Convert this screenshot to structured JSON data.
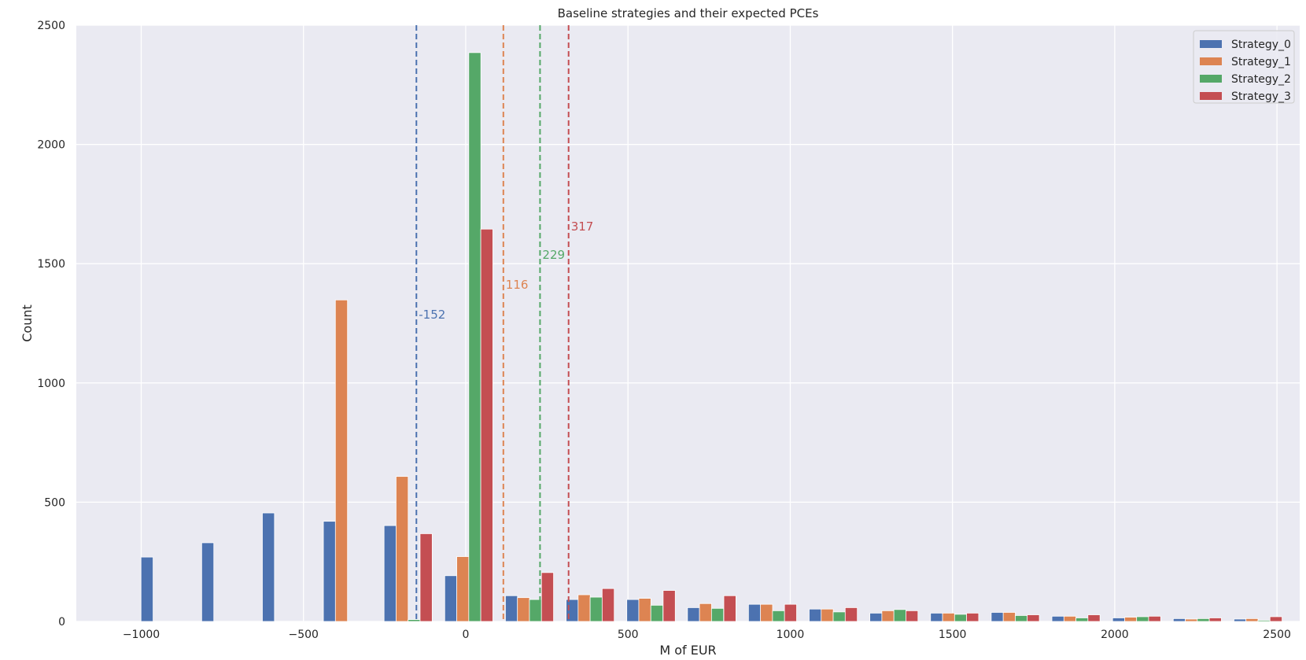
{
  "chart_data": {
    "type": "bar",
    "title": "Baseline strategies and their expected PCEs",
    "xlabel": "M of EUR",
    "ylabel": "Count",
    "xlim": [
      -1200,
      2570
    ],
    "ylim": [
      0,
      2500
    ],
    "xticks": [
      -1000,
      -500,
      0,
      500,
      1000,
      1500,
      2000,
      2500
    ],
    "xtick_labels": [
      "−1000",
      "−500",
      "0",
      "500",
      "1000",
      "1500",
      "2000",
      "2500"
    ],
    "yticks": [
      0,
      500,
      1000,
      1500,
      2000,
      2500
    ],
    "ytick_labels": [
      "0",
      "500",
      "1000",
      "1500",
      "2000",
      "2500"
    ],
    "grid": true,
    "legend_position": "top-right",
    "bin_width": 37.3,
    "series": [
      {
        "name": "Strategy_0",
        "color": "#4c72b0",
        "x": [
          -982,
          -795,
          -608,
          -420,
          -233,
          -46,
          141,
          328,
          515,
          702,
          890,
          1077,
          1264,
          1451,
          1638,
          1825,
          2012,
          2199,
          2386
        ],
        "values": [
          270,
          330,
          455,
          420,
          402,
          192,
          108,
          92,
          92,
          58,
          72,
          52,
          35,
          35,
          38,
          22,
          15,
          12,
          10
        ]
      },
      {
        "name": "Strategy_1",
        "color": "#dd8452",
        "x": [
          -945,
          -758,
          -571,
          -383,
          -196,
          -9,
          178,
          365,
          552,
          739,
          927,
          1114,
          1301,
          1488,
          1675,
          1862,
          2049,
          2236,
          2423
        ],
        "values": [
          0,
          0,
          0,
          1348,
          608,
          272,
          100,
          112,
          97,
          75,
          72,
          52,
          45,
          35,
          38,
          22,
          18,
          10,
          12
        ]
      },
      {
        "name": "Strategy_2",
        "color": "#55a868",
        "x": [
          -908,
          -720,
          -533,
          -346,
          -159,
          28,
          215,
          402,
          589,
          776,
          964,
          1151,
          1338,
          1525,
          1712,
          1899,
          2086,
          2273,
          2460
        ],
        "values": [
          0,
          0,
          0,
          0,
          8,
          2385,
          92,
          102,
          68,
          55,
          45,
          40,
          50,
          30,
          25,
          15,
          20,
          12,
          5
        ]
      },
      {
        "name": "Strategy_3",
        "color": "#c44e52",
        "x": [
          -870,
          -683,
          -496,
          -309,
          -122,
          65,
          252,
          439,
          627,
          814,
          1001,
          1188,
          1375,
          1562,
          1749,
          1936,
          2123,
          2310,
          2497
        ],
        "values": [
          0,
          0,
          0,
          0,
          368,
          1645,
          205,
          138,
          130,
          108,
          72,
          58,
          45,
          35,
          28,
          28,
          22,
          15,
          20
        ]
      }
    ],
    "vlines": [
      {
        "x": -152,
        "color": "#4c72b0",
        "label": "-152",
        "label_y": 1270
      },
      {
        "x": 116,
        "color": "#dd8452",
        "label": "116",
        "label_y": 1395
      },
      {
        "x": 229,
        "color": "#55a868",
        "label": "229",
        "label_y": 1520
      },
      {
        "x": 317,
        "color": "#c44e52",
        "label": "317",
        "label_y": 1640
      }
    ]
  }
}
